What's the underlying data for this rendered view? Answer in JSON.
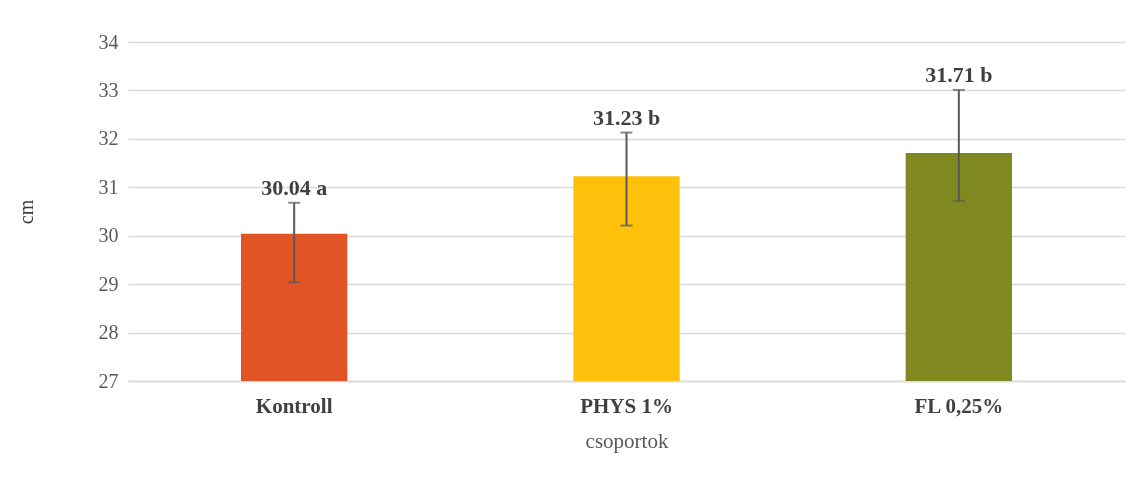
{
  "chart_data": {
    "type": "bar",
    "xlabel": "csoportok",
    "ylabel": "cm",
    "categories": [
      "Kontroll",
      "PHYS 1%",
      "FL 0,25%"
    ],
    "values": [
      30.04,
      31.23,
      31.71
    ],
    "colors": [
      "#e05426",
      "#fdc10b",
      "#7f891f"
    ],
    "errors": [
      [
        29.04,
        30.68
      ],
      [
        30.21,
        32.13
      ],
      [
        30.72,
        33.01
      ]
    ],
    "value_labels": [
      "30.04 a",
      "31.23 b",
      "31.71 b"
    ],
    "ylim": [
      27,
      34
    ],
    "yticks": [
      27,
      28,
      29,
      30,
      31,
      32,
      33,
      34
    ],
    "grid": "y",
    "legend": false
  }
}
